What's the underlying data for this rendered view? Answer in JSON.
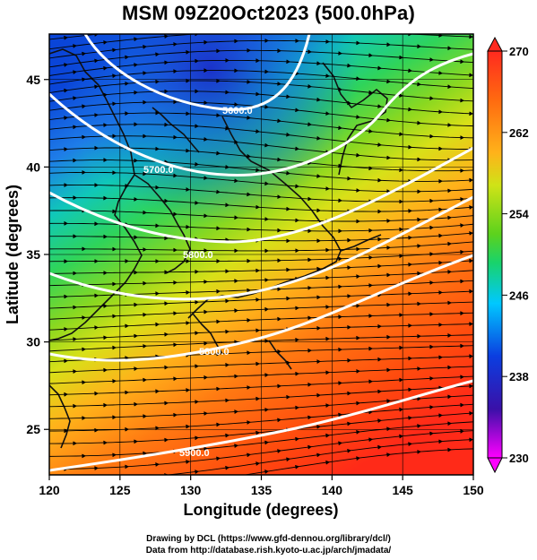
{
  "title": "MSM 09Z20Oct2023 (500.0hPa)",
  "xaxis": {
    "label": "Longitude (degrees)",
    "ticks": [
      "120",
      "125",
      "130",
      "135",
      "140",
      "145",
      "150"
    ],
    "range": [
      120,
      150
    ]
  },
  "yaxis": {
    "label": "Latitude  (degrees)",
    "ticks": [
      "25",
      "30",
      "35",
      "40",
      "45"
    ],
    "range": [
      22.4,
      47.6
    ]
  },
  "colorbar": {
    "ticks": [
      "270",
      "262",
      "254",
      "246",
      "238",
      "230"
    ],
    "range": [
      230,
      270
    ],
    "colors": [
      "#ff00ff",
      "#3a10a8",
      "#0b3ee0",
      "#00c8ff",
      "#19d36b",
      "#5cd21d",
      "#cfe317",
      "#ffa51f",
      "#ff4b0b",
      "#ff2a1f"
    ]
  },
  "map": {
    "contour_labels": [
      "5600.0",
      "5700.0",
      "5800.0",
      "5800.0",
      "5900.0"
    ],
    "field": "temperature (K)",
    "overlay": "wind vectors + geopotential height contours"
  },
  "credits": {
    "line1": "Drawing by DCL (https://www.gfd-dennou.org/library/dcl/)",
    "line2": "Data from http://database.rish.kyoto-u.ac.jp/arch/jmadata/"
  }
}
